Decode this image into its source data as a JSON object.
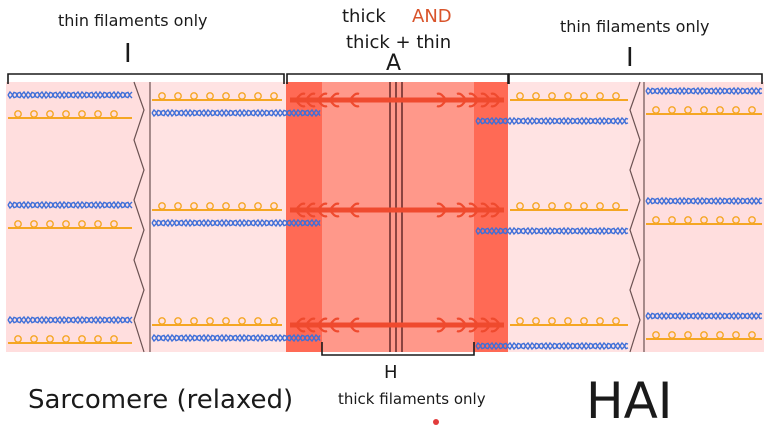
{
  "labels": {
    "i_band_left_text": "thin filaments only",
    "i_band_left_letter": "I",
    "a_band_line1_part1": "thick",
    "a_band_line1_part2": "AND",
    "a_band_line2": "thick + thin",
    "a_band_letter": "A",
    "i_band_right_text": "thin filaments only",
    "i_band_right_letter": "I",
    "h_zone_letter": "H",
    "h_zone_text": "thick filaments only",
    "caption": "Sarcomere (relaxed)",
    "mnemonic": "HAI"
  },
  "colors": {
    "background": "#ffffff",
    "sarcomere_pink": "#ffdede",
    "a_band_dark": "#ff6a55",
    "a_band_light": "#ff988a",
    "thick_filament": "#ef4a2e",
    "thin_filament_orange": "#f5a623",
    "thin_filament_blue": "#3f6fd8",
    "accent_text": "#d9542b",
    "cursor_dot": "#e23b3b"
  }
}
